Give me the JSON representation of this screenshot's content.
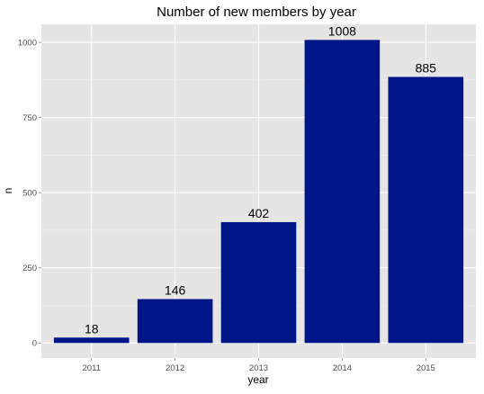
{
  "chart_data": {
    "type": "bar",
    "title": "Number of new members by year",
    "xlabel": "year",
    "ylabel": "n",
    "categories": [
      "2011",
      "2012",
      "2013",
      "2014",
      "2015"
    ],
    "values": [
      18,
      146,
      402,
      1008,
      885
    ],
    "data_labels": [
      "18",
      "146",
      "402",
      "1008",
      "885"
    ],
    "y_ticks": [
      0,
      250,
      500,
      750,
      1000
    ],
    "y_tick_labels": [
      "0",
      "250",
      "500",
      "750",
      "1000"
    ],
    "ylim": [
      -50,
      1060
    ],
    "grid": true,
    "legend": "none",
    "colors": {
      "bar": "#001688",
      "panel": "#e5e5e5",
      "grid_major": "#ffffff",
      "grid_minor": "#f2f2f2"
    }
  }
}
